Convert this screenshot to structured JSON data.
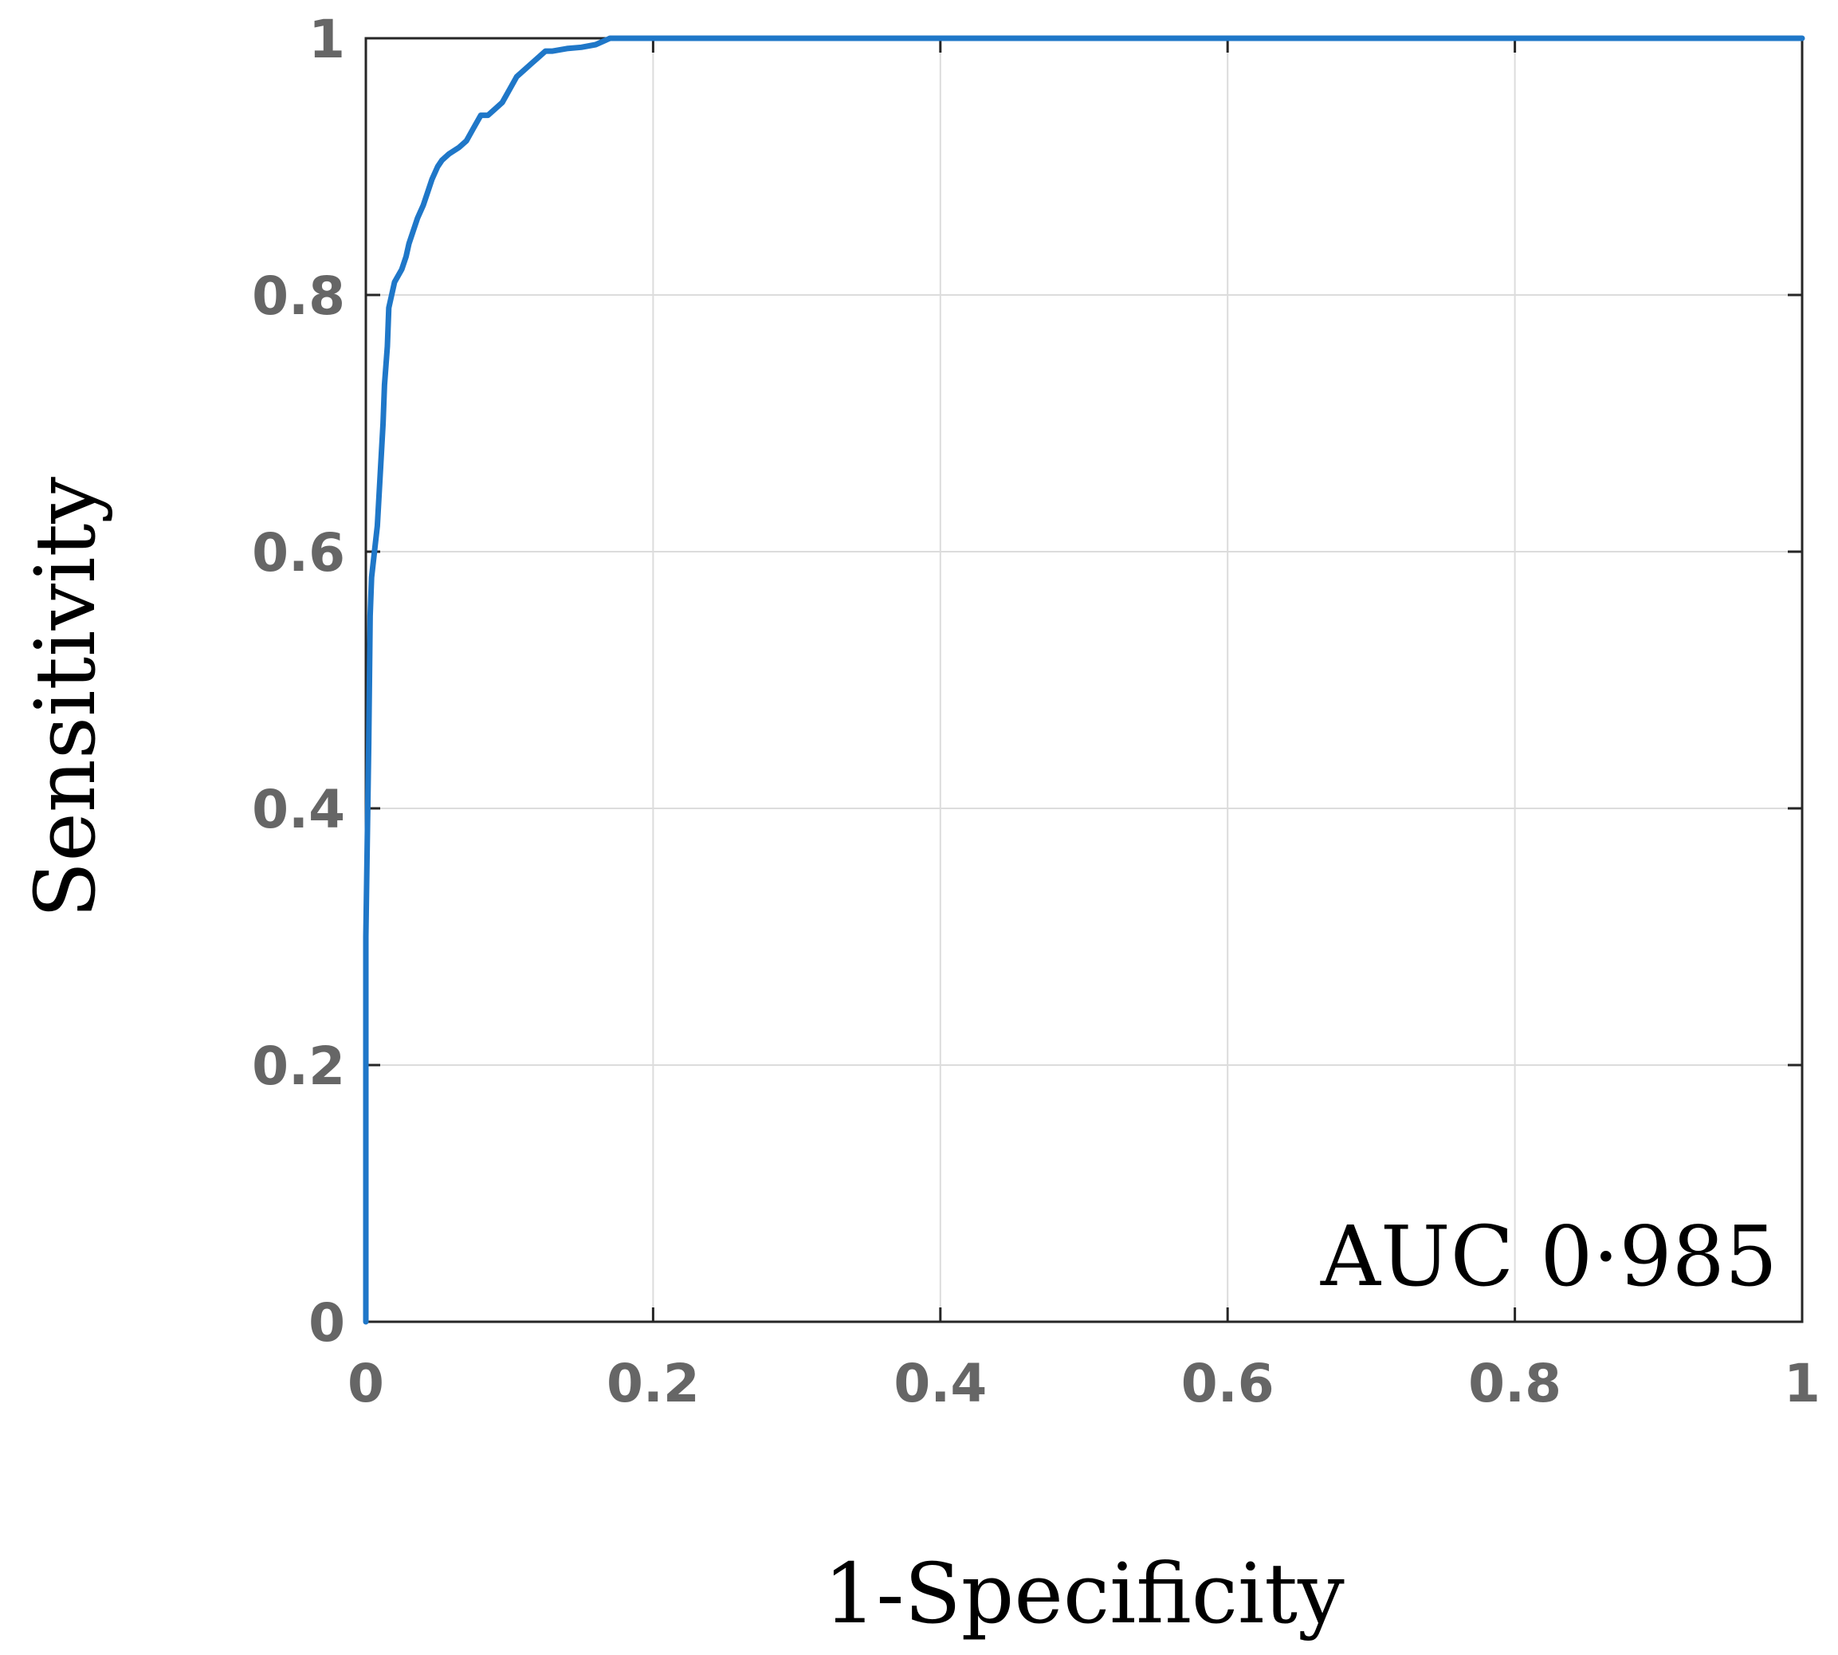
{
  "chart_data": {
    "type": "line",
    "title": "",
    "xlabel": "1-Specificity",
    "ylabel": "Sensitivity",
    "xlim": [
      0,
      1
    ],
    "ylim": [
      0,
      1
    ],
    "grid": true,
    "xticks": [
      0,
      0.2,
      0.4,
      0.6,
      0.8,
      1
    ],
    "yticks": [
      0,
      0.2,
      0.4,
      0.6,
      0.8,
      1
    ],
    "xtick_labels": [
      "0",
      "0.2",
      "0.4",
      "0.6",
      "0.8",
      "1"
    ],
    "ytick_labels": [
      "0",
      "0.2",
      "0.4",
      "0.6",
      "0.8",
      "1"
    ],
    "annotation": "AUC 0·985",
    "series": [
      {
        "color": "#1f77c8",
        "x": [
          0,
          0,
          0.002,
          0.003,
          0.004,
          0.006,
          0.008,
          0.01,
          0.012,
          0.013,
          0.015,
          0.016,
          0.018,
          0.02,
          0.025,
          0.028,
          0.03,
          0.033,
          0.036,
          0.04,
          0.043,
          0.046,
          0.05,
          0.053,
          0.058,
          0.065,
          0.07,
          0.075,
          0.08,
          0.085,
          0.09,
          0.095,
          0.1,
          0.105,
          0.11,
          0.115,
          0.12,
          0.125,
          0.13,
          0.14,
          0.15,
          0.16,
          0.17,
          0.18,
          0.3,
          0.5,
          0.7,
          0.9,
          1
        ],
        "y": [
          0,
          0.3,
          0.45,
          0.55,
          0.58,
          0.6,
          0.62,
          0.66,
          0.7,
          0.73,
          0.76,
          0.79,
          0.8,
          0.81,
          0.82,
          0.83,
          0.84,
          0.85,
          0.86,
          0.87,
          0.88,
          0.89,
          0.9,
          0.905,
          0.91,
          0.915,
          0.92,
          0.93,
          0.94,
          0.94,
          0.945,
          0.95,
          0.96,
          0.97,
          0.975,
          0.98,
          0.985,
          0.99,
          0.99,
          0.992,
          0.993,
          0.995,
          1,
          1,
          1,
          1,
          1,
          1,
          1
        ]
      }
    ]
  }
}
